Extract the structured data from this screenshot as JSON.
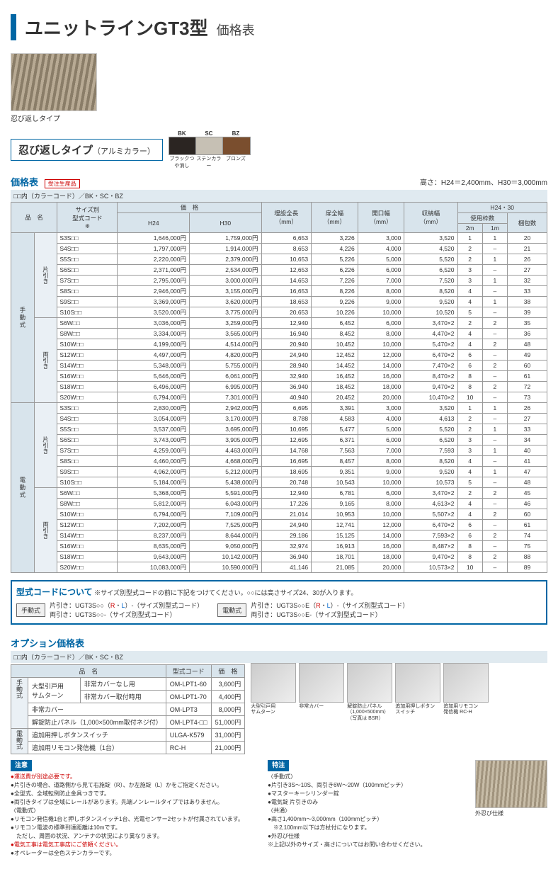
{
  "title": {
    "main": "ユニットラインGT3型",
    "sub": "価格表"
  },
  "product_caption": "忍び返しタイプ",
  "type_label": {
    "main": "忍び返しタイプ",
    "sub": "（アルミカラー）"
  },
  "colors": [
    {
      "code": "BK",
      "name": "ブラックつや消し",
      "hex": "#2b2522"
    },
    {
      "code": "SC",
      "name": "ステンカラー",
      "hex": "#c6c0b4"
    },
    {
      "code": "BZ",
      "name": "ブロンズ",
      "hex": "#7a4e2e"
    }
  ],
  "section_title": "価格表",
  "made_to_order": "受注生産品",
  "height_note": "高さ：H24＝2,400mm、H30＝3,000mm",
  "color_code_note": "□□内（カラーコード）／BK・SC・BZ",
  "headers": {
    "name": "品　名",
    "size_code": "サイズ別\n型式コード\n※",
    "price": "価　格",
    "h24": "H24",
    "h30": "H30",
    "install": "埋設全長\n（mm）",
    "door": "扉全幅\n（mm）",
    "open": "開口幅\n（mm）",
    "storage": "収納幅\n（mm）",
    "group": "H24・30",
    "frame": "使用枠数",
    "f2m": "2m",
    "f1m": "1m",
    "pkg": "梱包数"
  },
  "groups": [
    {
      "drive": "手動式",
      "sub": "片引き",
      "rows": [
        {
          "c": "S3S□□",
          "p24": "1,646,000円",
          "p30": "1,759,000円",
          "a": "6,653",
          "b": "3,226",
          "o": "3,000",
          "s": "3,520",
          "f2": "1",
          "f1": "1",
          "k": "20"
        },
        {
          "c": "S4S□□",
          "p24": "1,797,000円",
          "p30": "1,914,000円",
          "a": "8,653",
          "b": "4,226",
          "o": "4,000",
          "s": "4,520",
          "f2": "2",
          "f1": "–",
          "k": "21"
        },
        {
          "c": "S5S□□",
          "p24": "2,220,000円",
          "p30": "2,379,000円",
          "a": "10,653",
          "b": "5,226",
          "o": "5,000",
          "s": "5,520",
          "f2": "2",
          "f1": "1",
          "k": "26"
        },
        {
          "c": "S6S□□",
          "p24": "2,371,000円",
          "p30": "2,534,000円",
          "a": "12,653",
          "b": "6,226",
          "o": "6,000",
          "s": "6,520",
          "f2": "3",
          "f1": "–",
          "k": "27"
        },
        {
          "c": "S7S□□",
          "p24": "2,795,000円",
          "p30": "3,000,000円",
          "a": "14,653",
          "b": "7,226",
          "o": "7,000",
          "s": "7,520",
          "f2": "3",
          "f1": "1",
          "k": "32"
        },
        {
          "c": "S8S□□",
          "p24": "2,946,000円",
          "p30": "3,155,000円",
          "a": "16,653",
          "b": "8,226",
          "o": "8,000",
          "s": "8,520",
          "f2": "4",
          "f1": "–",
          "k": "33"
        },
        {
          "c": "S9S□□",
          "p24": "3,369,000円",
          "p30": "3,620,000円",
          "a": "18,653",
          "b": "9,226",
          "o": "9,000",
          "s": "9,520",
          "f2": "4",
          "f1": "1",
          "k": "38"
        },
        {
          "c": "S10S□□",
          "p24": "3,520,000円",
          "p30": "3,775,000円",
          "a": "20,653",
          "b": "10,226",
          "o": "10,000",
          "s": "10,520",
          "f2": "5",
          "f1": "–",
          "k": "39"
        }
      ]
    },
    {
      "drive": "",
      "sub": "両引き",
      "rows": [
        {
          "c": "S6W□□",
          "p24": "3,036,000円",
          "p30": "3,259,000円",
          "a": "12,940",
          "b": "6,452",
          "o": "6,000",
          "s": "3,470×2",
          "f2": "2",
          "f1": "2",
          "k": "35"
        },
        {
          "c": "S8W□□",
          "p24": "3,334,000円",
          "p30": "3,565,000円",
          "a": "16,940",
          "b": "8,452",
          "o": "8,000",
          "s": "4,470×2",
          "f2": "4",
          "f1": "–",
          "k": "36"
        },
        {
          "c": "S10W□□",
          "p24": "4,199,000円",
          "p30": "4,514,000円",
          "a": "20,940",
          "b": "10,452",
          "o": "10,000",
          "s": "5,470×2",
          "f2": "4",
          "f1": "2",
          "k": "48"
        },
        {
          "c": "S12W□□",
          "p24": "4,497,000円",
          "p30": "4,820,000円",
          "a": "24,940",
          "b": "12,452",
          "o": "12,000",
          "s": "6,470×2",
          "f2": "6",
          "f1": "–",
          "k": "49"
        },
        {
          "c": "S14W□□",
          "p24": "5,348,000円",
          "p30": "5,755,000円",
          "a": "28,940",
          "b": "14,452",
          "o": "14,000",
          "s": "7,470×2",
          "f2": "6",
          "f1": "2",
          "k": "60"
        },
        {
          "c": "S16W□□",
          "p24": "5,646,000円",
          "p30": "6,061,000円",
          "a": "32,940",
          "b": "16,452",
          "o": "16,000",
          "s": "8,470×2",
          "f2": "8",
          "f1": "–",
          "k": "61"
        },
        {
          "c": "S18W□□",
          "p24": "6,496,000円",
          "p30": "6,995,000円",
          "a": "36,940",
          "b": "18,452",
          "o": "18,000",
          "s": "9,470×2",
          "f2": "8",
          "f1": "2",
          "k": "72"
        },
        {
          "c": "S20W□□",
          "p24": "6,794,000円",
          "p30": "7,301,000円",
          "a": "40,940",
          "b": "20,452",
          "o": "20,000",
          "s": "10,470×2",
          "f2": "10",
          "f1": "–",
          "k": "73"
        }
      ]
    },
    {
      "drive": "電動式",
      "sub": "片引き",
      "rows": [
        {
          "c": "S3S□□",
          "p24": "2,830,000円",
          "p30": "2,942,000円",
          "a": "6,695",
          "b": "3,391",
          "o": "3,000",
          "s": "3,520",
          "f2": "1",
          "f1": "1",
          "k": "26"
        },
        {
          "c": "S4S□□",
          "p24": "3,054,000円",
          "p30": "3,170,000円",
          "a": "8,788",
          "b": "4,583",
          "o": "4,000",
          "s": "4,613",
          "f2": "2",
          "f1": "–",
          "k": "27"
        },
        {
          "c": "S5S□□",
          "p24": "3,537,000円",
          "p30": "3,695,000円",
          "a": "10,695",
          "b": "5,477",
          "o": "5,000",
          "s": "5,520",
          "f2": "2",
          "f1": "1",
          "k": "33"
        },
        {
          "c": "S6S□□",
          "p24": "3,743,000円",
          "p30": "3,905,000円",
          "a": "12,695",
          "b": "6,371",
          "o": "6,000",
          "s": "6,520",
          "f2": "3",
          "f1": "–",
          "k": "34"
        },
        {
          "c": "S7S□□",
          "p24": "4,259,000円",
          "p30": "4,463,000円",
          "a": "14,768",
          "b": "7,563",
          "o": "7,000",
          "s": "7,593",
          "f2": "3",
          "f1": "1",
          "k": "40"
        },
        {
          "c": "S8S□□",
          "p24": "4,460,000円",
          "p30": "4,668,000円",
          "a": "16,695",
          "b": "8,457",
          "o": "8,000",
          "s": "8,520",
          "f2": "4",
          "f1": "–",
          "k": "41"
        },
        {
          "c": "S9S□□",
          "p24": "4,962,000円",
          "p30": "5,212,000円",
          "a": "18,695",
          "b": "9,351",
          "o": "9,000",
          "s": "9,520",
          "f2": "4",
          "f1": "1",
          "k": "47"
        },
        {
          "c": "S10S□□",
          "p24": "5,184,000円",
          "p30": "5,438,000円",
          "a": "20,748",
          "b": "10,543",
          "o": "10,000",
          "s": "10,573",
          "f2": "5",
          "f1": "–",
          "k": "48"
        }
      ]
    },
    {
      "drive": "",
      "sub": "両引き",
      "rows": [
        {
          "c": "S6W□□",
          "p24": "5,368,000円",
          "p30": "5,591,000円",
          "a": "12,940",
          "b": "6,781",
          "o": "6,000",
          "s": "3,470×2",
          "f2": "2",
          "f1": "2",
          "k": "45"
        },
        {
          "c": "S8W□□",
          "p24": "5,812,000円",
          "p30": "6,043,000円",
          "a": "17,226",
          "b": "9,165",
          "o": "8,000",
          "s": "4,613×2",
          "f2": "4",
          "f1": "–",
          "k": "46"
        },
        {
          "c": "S10W□□",
          "p24": "6,794,000円",
          "p30": "7,109,000円",
          "a": "21,014",
          "b": "10,953",
          "o": "10,000",
          "s": "5,507×2",
          "f2": "4",
          "f1": "2",
          "k": "60"
        },
        {
          "c": "S12W□□",
          "p24": "7,202,000円",
          "p30": "7,525,000円",
          "a": "24,940",
          "b": "12,741",
          "o": "12,000",
          "s": "6,470×2",
          "f2": "6",
          "f1": "–",
          "k": "61"
        },
        {
          "c": "S14W□□",
          "p24": "8,237,000円",
          "p30": "8,644,000円",
          "a": "29,186",
          "b": "15,125",
          "o": "14,000",
          "s": "7,593×2",
          "f2": "6",
          "f1": "2",
          "k": "74"
        },
        {
          "c": "S16W□□",
          "p24": "8,635,000円",
          "p30": "9,050,000円",
          "a": "32,974",
          "b": "16,913",
          "o": "16,000",
          "s": "8,487×2",
          "f2": "8",
          "f1": "–",
          "k": "75"
        },
        {
          "c": "S18W□□",
          "p24": "9,643,000円",
          "p30": "10,142,000円",
          "a": "36,940",
          "b": "18,701",
          "o": "18,000",
          "s": "9,470×2",
          "f2": "8",
          "f1": "2",
          "k": "88"
        },
        {
          "c": "S20W□□",
          "p24": "10,083,000円",
          "p30": "10,590,000円",
          "a": "41,146",
          "b": "21,085",
          "o": "20,000",
          "s": "10,573×2",
          "f2": "10",
          "f1": "–",
          "k": "89"
        }
      ]
    }
  ],
  "model_code": {
    "title": "型式コードについて",
    "note": "※サイズ別型式コードの前に下記をつけてください。○○には高さサイズ24、30が入ります。",
    "manual_label": "手動式",
    "manual_kata": "片引き：UGT3S○○（R・L）-（サイズ別型式コード）",
    "manual_ryou": "両引き：UGT3S○○-（サイズ別型式コード）",
    "elec_label": "電動式",
    "elec_kata": "片引き：UGT3S○○E（R・L）-（サイズ別型式コード）",
    "elec_ryou": "両引き：UGT3S○○E-（サイズ別型式コード）"
  },
  "option": {
    "title": "オプション価格表",
    "color_note": "□□内（カラーコード）／BK・SC・BZ",
    "headers": {
      "name": "品　名",
      "code": "型式コード",
      "price": "価　格"
    },
    "rows": [
      {
        "drv": "手動式",
        "span": 4,
        "n1": "大型引戸用\nサムターン",
        "n2": "非常カバーなし用",
        "cd": "OM-LPT1-60",
        "pr": "3,600円"
      },
      {
        "n2": "非常カバー取付時用",
        "cd": "OM-LPT1-70",
        "pr": "4,400円"
      },
      {
        "n1": "非常カバー",
        "cd": "OM-LPT3",
        "pr": "8,000円"
      },
      {
        "n1": "解錠防止パネル（1,000×500mm取付ネジ付）",
        "cd": "OM-LPT4-□□",
        "pr": "51,000円"
      },
      {
        "drv": "電動式",
        "span": 2,
        "n1": "追加用押しボタンスイッチ",
        "cd": "ULGA-K579",
        "pr": "31,000円"
      },
      {
        "n1": "追加用リモコン発信機（1台）",
        "cd": "RC-H",
        "pr": "21,000円"
      }
    ],
    "imgs": [
      {
        "cap": "大型引戸用\nサムターン"
      },
      {
        "cap": "非常カバー"
      },
      {
        "cap": "解錠防止パネル\n（1,000×500mm）\n（写真は BSR）"
      },
      {
        "cap": "追加用押しボタン\nスイッチ"
      },
      {
        "cap": "追加用リモコン\n発信機 RC-H"
      }
    ]
  },
  "notes": {
    "caution_title": "注意",
    "caution": [
      {
        "t": "●運送費が別途必要です。",
        "red": true
      },
      {
        "t": "●片引きの場合、道路側から見て右施錠（R）、か左施錠（L）かをご指定ください。"
      },
      {
        "t": "●全型式、全域転倒防止金具つきです。"
      },
      {
        "t": "●両引きタイプは全域にレールがあります。先端ノンレールタイプではありません。"
      },
      {
        "t": "〈電動式〉"
      },
      {
        "t": "●リモコン発信機1台と押しボタンスイッチ1台、光電センサー2セットが付属されています。"
      },
      {
        "t": "●リモコン電波の標準到達距離は10mです。\n　ただし、周囲の状況、アンテナの状況により異なります。"
      },
      {
        "t": "●電気工事は電気工事店にご依頼ください。",
        "red": true
      },
      {
        "t": "●オペレーターは全色ステンカラーです。"
      }
    ],
    "spec_title": "特注",
    "spec": [
      "〈手動式〉",
      "●片引き3S～10S、両引き6W～20W（100mmピッチ）",
      "●マスターキーシリンダー錠",
      "●電気錠 片引きのみ",
      "〈共通〉",
      "●高さ1,400mm～3,000mm（100mmピッチ）\n　※2,100mm以下は方杖付になります。",
      "●外忍び仕様",
      "※上記以外のサイズ・高さについてはお問い合わせください。"
    ],
    "outer_caption": "外忍び仕様"
  }
}
